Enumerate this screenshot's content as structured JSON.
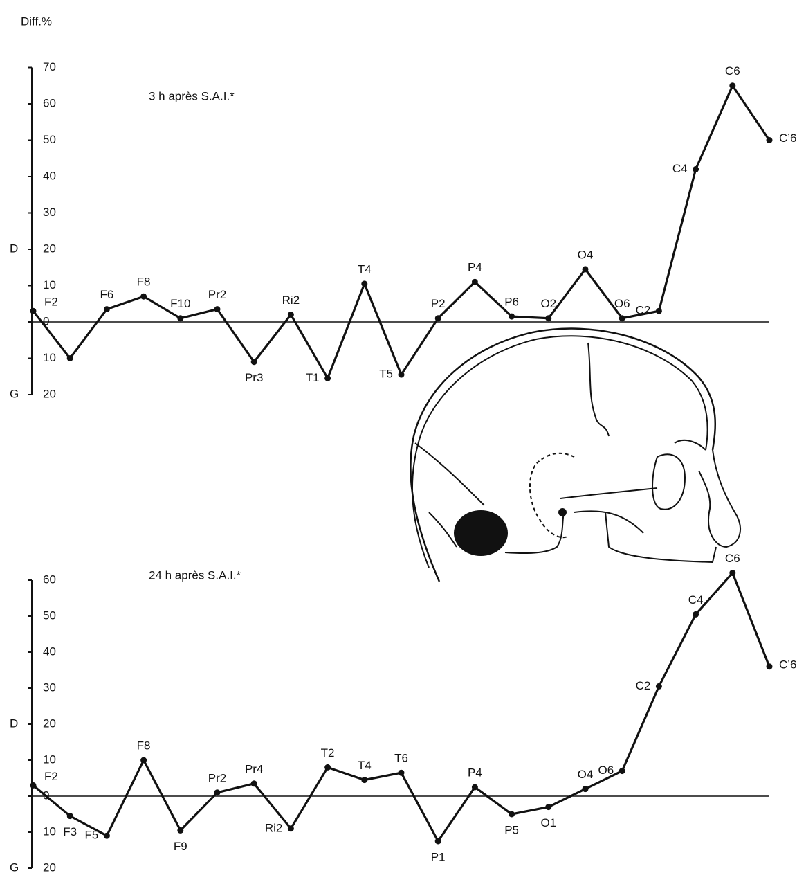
{
  "chart_data": [
    {
      "type": "line",
      "y_label": "Diff.%",
      "title": "3 h après S.A.I.*",
      "upper_side": "D",
      "lower_side": "G",
      "categories": [
        "F2",
        null,
        "F6",
        "F8",
        "F10",
        "Pr2",
        "Pr3",
        "Ri2",
        "T1",
        "T4",
        "T5",
        "P2",
        "P4",
        "P6",
        "O2",
        "O4",
        "O6",
        "C2",
        "C4",
        "C6",
        "C’6"
      ],
      "values": [
        3,
        -10,
        3.5,
        7,
        1,
        3.5,
        -11,
        2,
        -15.5,
        10.5,
        -14.5,
        1,
        11,
        1.5,
        1,
        14.5,
        1,
        3,
        42,
        65,
        50
      ],
      "color": "#111111",
      "ylim": [
        -20,
        70
      ],
      "yticks": [
        {
          "value": -20,
          "label": "20"
        },
        {
          "value": -10,
          "label": "10"
        },
        0,
        10,
        20,
        30,
        40,
        50,
        60,
        70
      ]
    },
    {
      "type": "line",
      "title": "24 h après S.A.I.*",
      "upper_side": "D",
      "lower_side": "G",
      "categories": [
        "F2",
        "F3",
        "F5",
        "F8",
        "F9",
        "Pr2",
        "Pr4",
        "Ri2",
        "T2",
        "T4",
        "T6",
        "P1",
        "P4",
        "P5",
        "O1",
        "O4",
        "O6",
        "C2",
        "C4",
        "C6",
        "C’6"
      ],
      "values": [
        3,
        -5.5,
        -11,
        10,
        -9.5,
        1,
        3.5,
        -9,
        8,
        4.5,
        6.5,
        -12.5,
        2.5,
        -5,
        -3,
        2,
        7,
        30.5,
        50.5,
        62,
        36
      ],
      "color": "#111111",
      "ylim": [
        -20,
        60
      ],
      "yticks": [
        {
          "value": -20,
          "label": "20"
        },
        {
          "value": -10,
          "label": "10"
        },
        0,
        10,
        20,
        30,
        40,
        50,
        60
      ]
    }
  ]
}
